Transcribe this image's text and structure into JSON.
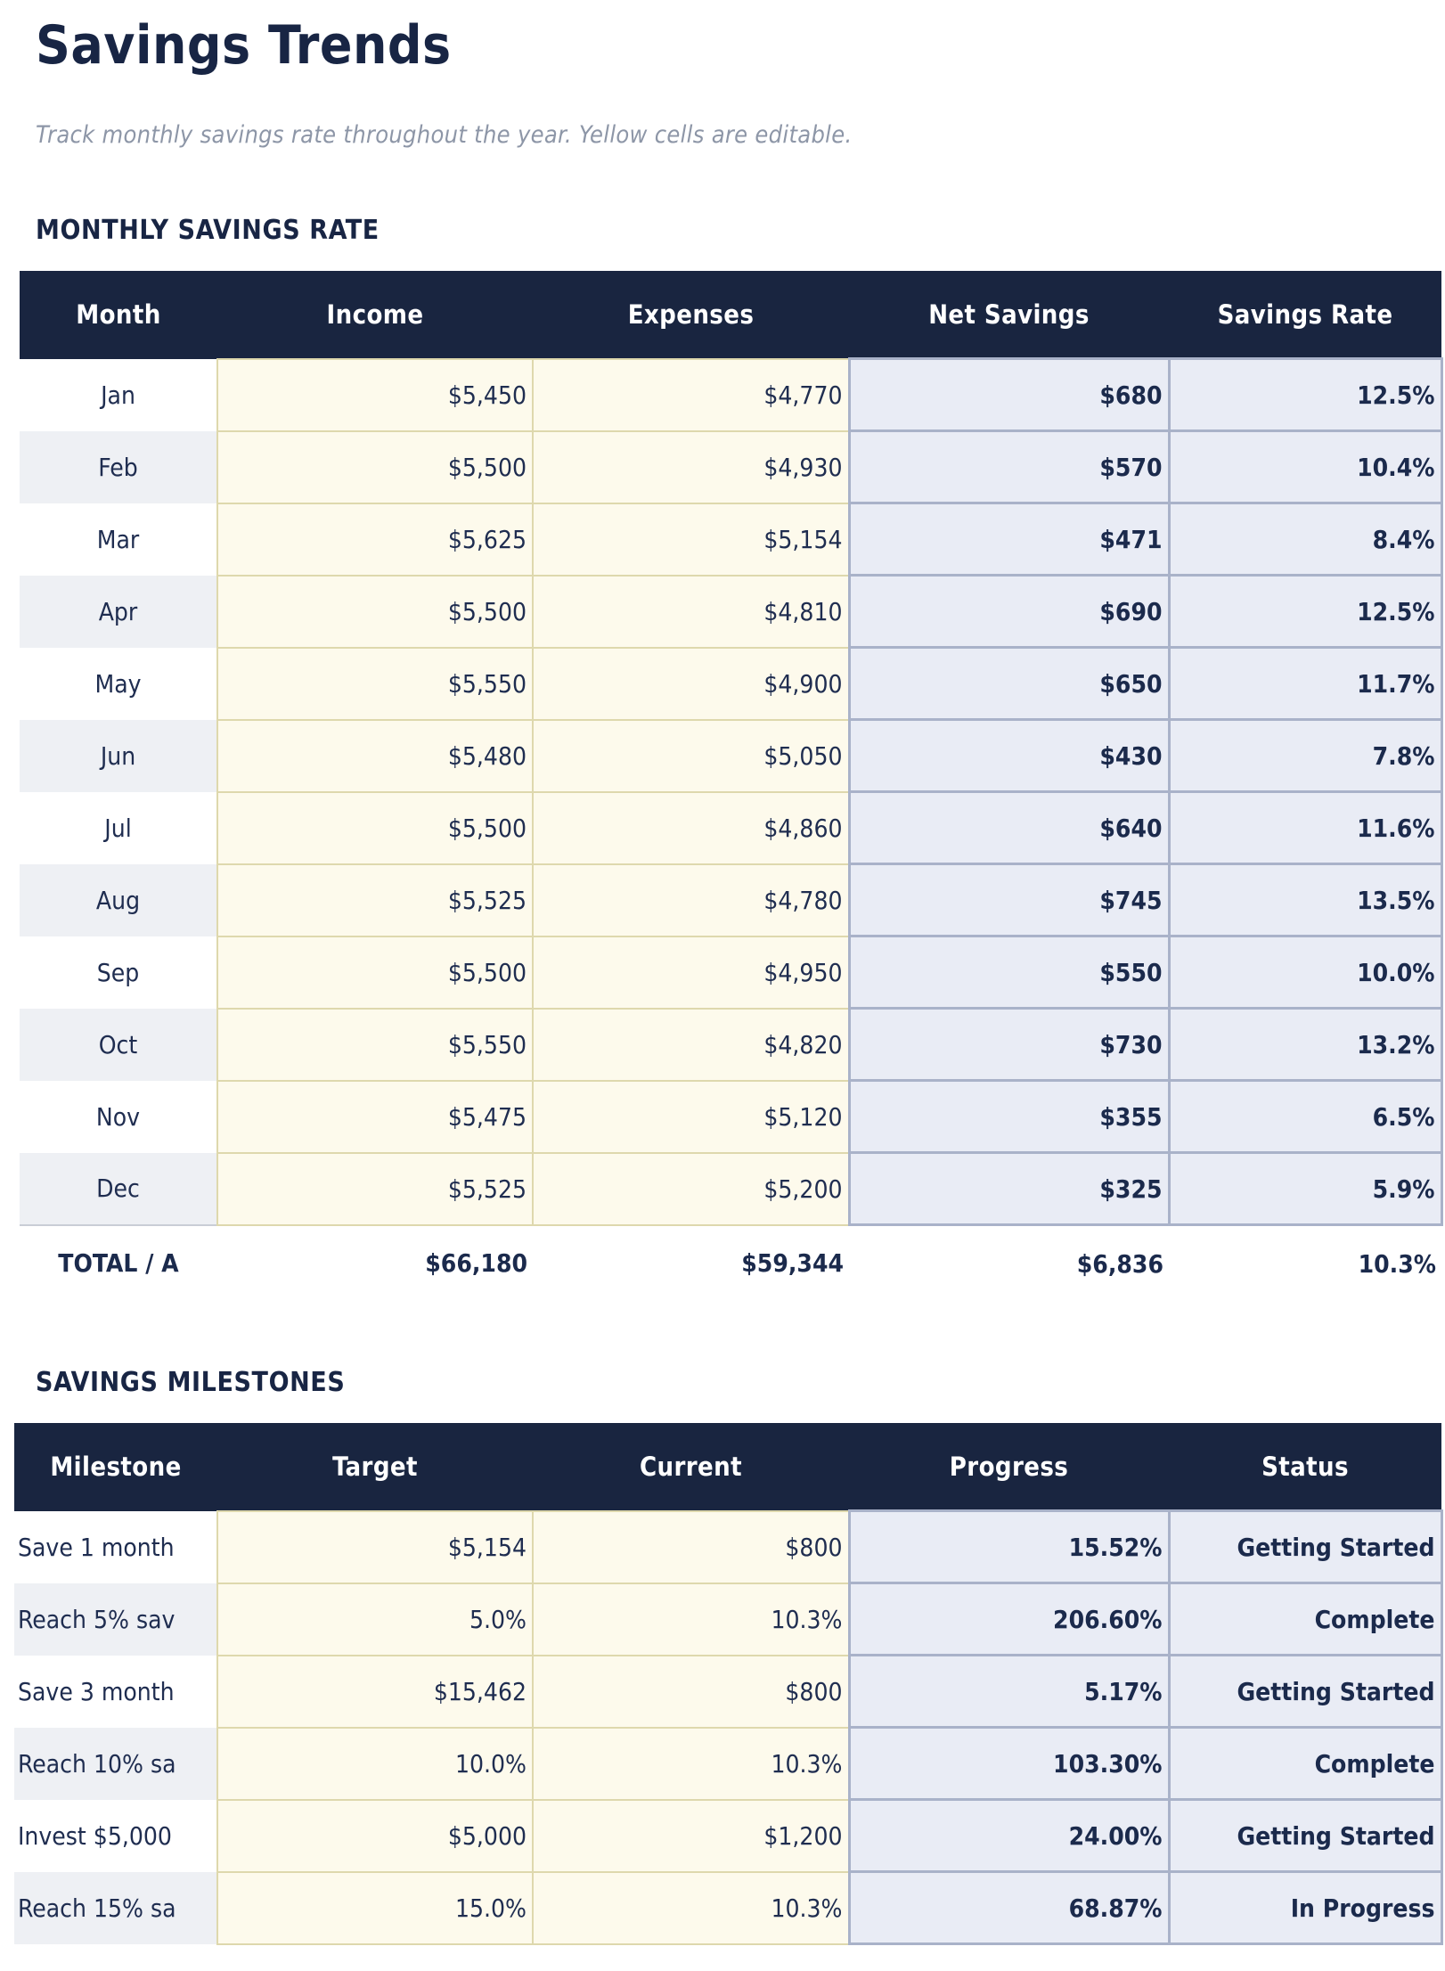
{
  "page": {
    "title": "Savings Trends",
    "subtitle": "Track monthly savings rate throughout the year. Yellow cells are editable."
  },
  "colors": {
    "header_bg": "#192540",
    "title_text": "#182544",
    "editable_cell_bg": "#fdfaec",
    "editable_cell_border": "#ded8ad",
    "computed_cell_bg": "#e9ecf5",
    "computed_cell_border": "#a9b2c9",
    "row_stripe": "#eef0f4",
    "subtitle_text": "#8d96a7"
  },
  "monthly": {
    "section_title": "MONTHLY SAVINGS RATE",
    "columns": [
      "Month",
      "Income",
      "Expenses",
      "Net Savings",
      "Savings Rate"
    ],
    "rows": [
      {
        "month": "Jan",
        "income": "$5,450",
        "expenses": "$4,770",
        "net_savings": "$680",
        "savings_rate": "12.5%"
      },
      {
        "month": "Feb",
        "income": "$5,500",
        "expenses": "$4,930",
        "net_savings": "$570",
        "savings_rate": "10.4%"
      },
      {
        "month": "Mar",
        "income": "$5,625",
        "expenses": "$5,154",
        "net_savings": "$471",
        "savings_rate": "8.4%"
      },
      {
        "month": "Apr",
        "income": "$5,500",
        "expenses": "$4,810",
        "net_savings": "$690",
        "savings_rate": "12.5%"
      },
      {
        "month": "May",
        "income": "$5,550",
        "expenses": "$4,900",
        "net_savings": "$650",
        "savings_rate": "11.7%"
      },
      {
        "month": "Jun",
        "income": "$5,480",
        "expenses": "$5,050",
        "net_savings": "$430",
        "savings_rate": "7.8%"
      },
      {
        "month": "Jul",
        "income": "$5,500",
        "expenses": "$4,860",
        "net_savings": "$640",
        "savings_rate": "11.6%"
      },
      {
        "month": "Aug",
        "income": "$5,525",
        "expenses": "$4,780",
        "net_savings": "$745",
        "savings_rate": "13.5%"
      },
      {
        "month": "Sep",
        "income": "$5,500",
        "expenses": "$4,950",
        "net_savings": "$550",
        "savings_rate": "10.0%"
      },
      {
        "month": "Oct",
        "income": "$5,550",
        "expenses": "$4,820",
        "net_savings": "$730",
        "savings_rate": "13.2%"
      },
      {
        "month": "Nov",
        "income": "$5,475",
        "expenses": "$5,120",
        "net_savings": "$355",
        "savings_rate": "6.5%"
      },
      {
        "month": "Dec",
        "income": "$5,525",
        "expenses": "$5,200",
        "net_savings": "$325",
        "savings_rate": "5.9%"
      }
    ],
    "total": {
      "label": "TOTAL / A",
      "income": "$66,180",
      "expenses": "$59,344",
      "net_savings": "$6,836",
      "savings_rate": "10.3%"
    }
  },
  "milestones": {
    "section_title": "SAVINGS MILESTONES",
    "columns": [
      "Milestone",
      "Target",
      "Current",
      "Progress",
      "Status"
    ],
    "rows": [
      {
        "milestone": "Save 1 month",
        "target": "$5,154",
        "current": "$800",
        "progress": "15.52%",
        "status": "Getting Started"
      },
      {
        "milestone": "Reach 5% sav",
        "target": "5.0%",
        "current": "10.3%",
        "progress": "206.60%",
        "status": "Complete"
      },
      {
        "milestone": "Save 3 month",
        "target": "$15,462",
        "current": "$800",
        "progress": "5.17%",
        "status": "Getting Started"
      },
      {
        "milestone": "Reach 10% sa",
        "target": "10.0%",
        "current": "10.3%",
        "progress": "103.30%",
        "status": "Complete"
      },
      {
        "milestone": "Invest $5,000",
        "target": "$5,000",
        "current": "$1,200",
        "progress": "24.00%",
        "status": "Getting Started"
      },
      {
        "milestone": "Reach 15% sa",
        "target": "15.0%",
        "current": "10.3%",
        "progress": "68.87%",
        "status": "In Progress"
      }
    ]
  }
}
